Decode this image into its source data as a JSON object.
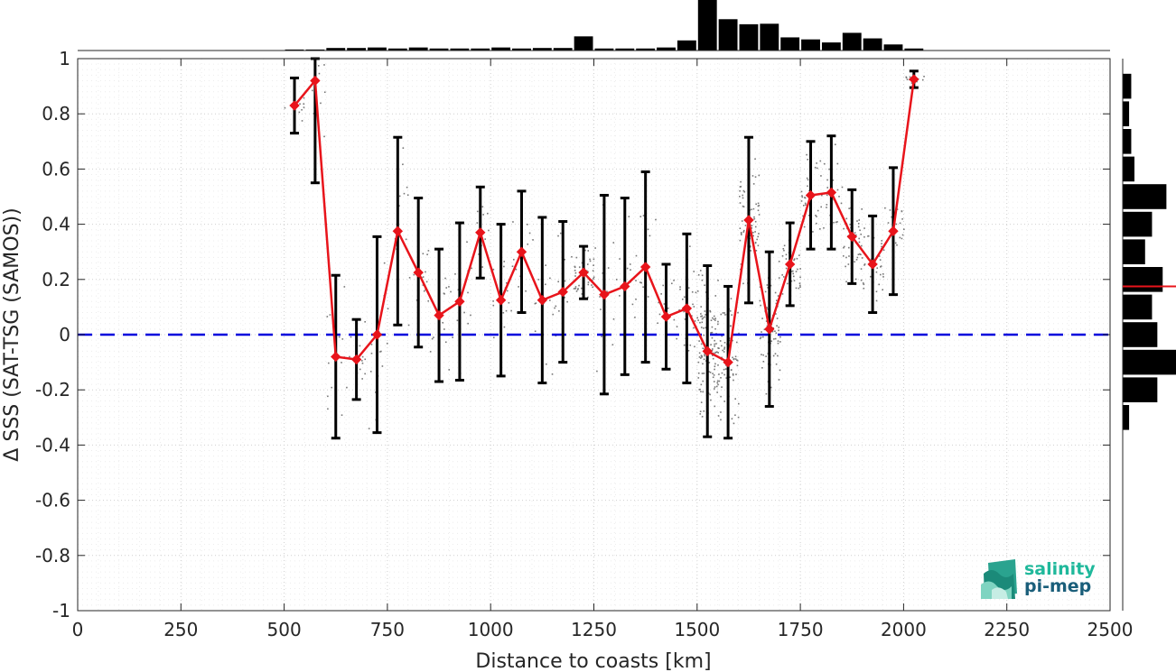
{
  "chart_data": {
    "type": "line",
    "xlabel": "Distance to coasts [km]",
    "ylabel": "Δ SSS (SAT-TSG (SAMOS))",
    "xlim": [
      0,
      2500
    ],
    "ylim": [
      -1,
      1
    ],
    "x_ticks": [
      "0",
      "250",
      "500",
      "750",
      "1000",
      "1250",
      "1500",
      "1750",
      "2000",
      "2250",
      "2500"
    ],
    "y_ticks": [
      "-1",
      "-0.8",
      "-0.6",
      "-0.4",
      "-0.2",
      "0",
      "0.2",
      "0.4",
      "0.6",
      "0.8",
      "1"
    ],
    "grid": true,
    "reference_line": {
      "y": 0,
      "color": "#0000dd",
      "style": "dashed"
    },
    "series": [
      {
        "color": "#e8141b",
        "marker": "diamond",
        "x": [
          525,
          575,
          625,
          675,
          725,
          775,
          825,
          875,
          925,
          975,
          1025,
          1075,
          1125,
          1175,
          1225,
          1275,
          1325,
          1375,
          1425,
          1475,
          1525,
          1575,
          1625,
          1675,
          1725,
          1775,
          1825,
          1875,
          1925,
          1975,
          2025
        ],
        "y": [
          0.83,
          0.92,
          -0.08,
          -0.09,
          0.0,
          0.375,
          0.225,
          0.07,
          0.12,
          0.37,
          0.125,
          0.3,
          0.125,
          0.155,
          0.225,
          0.145,
          0.175,
          0.245,
          0.065,
          0.095,
          -0.06,
          -0.1,
          0.415,
          0.02,
          0.255,
          0.505,
          0.515,
          0.355,
          0.255,
          0.375,
          0.925
        ],
        "err": [
          0.1,
          0.37,
          0.295,
          0.145,
          0.355,
          0.34,
          0.27,
          0.24,
          0.285,
          0.165,
          0.275,
          0.22,
          0.3,
          0.255,
          0.095,
          0.36,
          0.32,
          0.345,
          0.19,
          0.27,
          0.31,
          0.275,
          0.3,
          0.28,
          0.15,
          0.195,
          0.205,
          0.17,
          0.175,
          0.23,
          0.03
        ]
      }
    ],
    "top_histogram": {
      "bin_width": 50,
      "bin_starts": [
        500,
        550,
        600,
        650,
        700,
        750,
        800,
        850,
        900,
        950,
        1000,
        1050,
        1100,
        1150,
        1200,
        1250,
        1300,
        1350,
        1400,
        1450,
        1500,
        1550,
        1600,
        1650,
        1700,
        1750,
        1800,
        1850,
        1900,
        1950,
        2000
      ],
      "relative_counts": [
        0.02,
        0.02,
        0.05,
        0.05,
        0.06,
        0.04,
        0.06,
        0.04,
        0.04,
        0.04,
        0.06,
        0.04,
        0.05,
        0.05,
        0.28,
        0.04,
        0.04,
        0.04,
        0.06,
        0.2,
        1.0,
        0.62,
        0.52,
        0.53,
        0.26,
        0.22,
        0.16,
        0.35,
        0.24,
        0.12,
        0.04
      ]
    },
    "right_histogram": {
      "bin_width": 0.1,
      "bin_centers": [
        0.9,
        0.8,
        0.7,
        0.6,
        0.5,
        0.4,
        0.3,
        0.2,
        0.1,
        0.0,
        -0.1,
        -0.2,
        -0.3
      ],
      "relative_counts": [
        0.16,
        0.12,
        0.16,
        0.22,
        0.82,
        0.55,
        0.42,
        0.75,
        0.55,
        0.65,
        1.0,
        0.65,
        0.12
      ],
      "median_marker": {
        "y": 0.175,
        "color": "#e8141b"
      }
    }
  },
  "logo": {
    "line1": "salinity",
    "line2": "pi-mep"
  }
}
